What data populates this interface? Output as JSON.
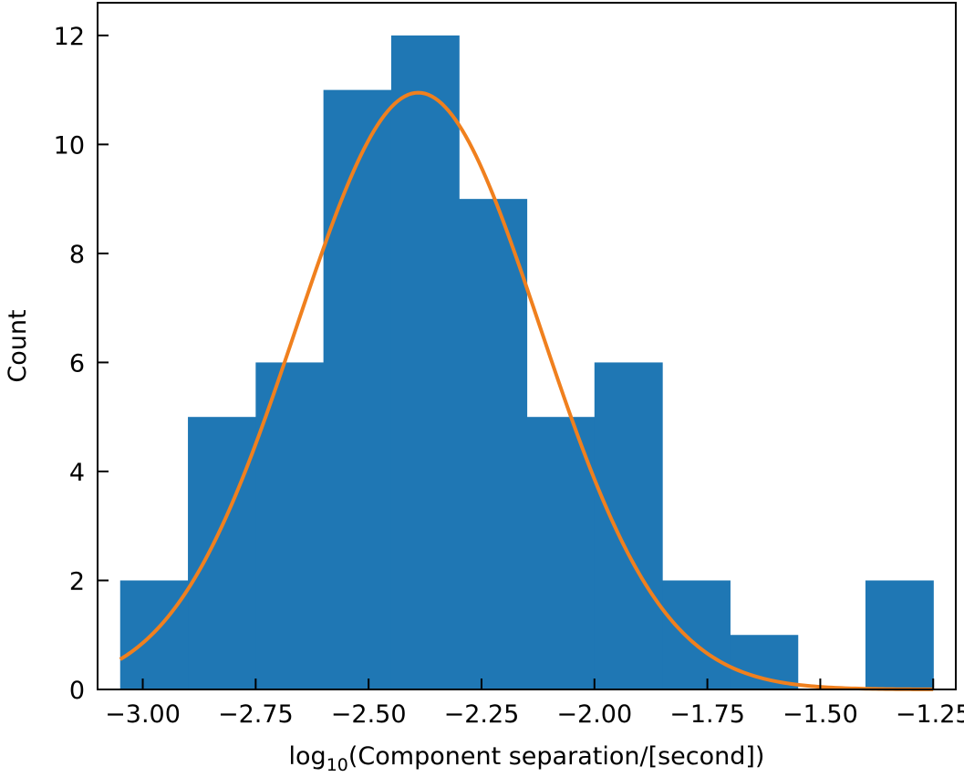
{
  "chart_data": {
    "type": "bar",
    "subtype": "histogram",
    "title": "",
    "xlabel": {
      "prefix": "log",
      "subscript": "10",
      "suffix": "(Component separation/[second])"
    },
    "ylabel": "Count",
    "xlim": [
      -3.1,
      -1.2
    ],
    "ylim": [
      0,
      12.6
    ],
    "xticks": [
      -3.0,
      -2.75,
      -2.5,
      -2.25,
      -2.0,
      -1.75,
      -1.5,
      -1.25
    ],
    "xtick_labels": [
      "−3.00",
      "−2.75",
      "−2.50",
      "−2.25",
      "−2.00",
      "−1.75",
      "−1.50",
      "−1.25"
    ],
    "yticks": [
      0,
      2,
      4,
      6,
      8,
      10,
      12
    ],
    "ytick_labels": [
      "0",
      "2",
      "4",
      "6",
      "8",
      "10",
      "12"
    ],
    "grid": false,
    "bins": [
      {
        "x0": -3.05,
        "x1": -2.9,
        "count": 2
      },
      {
        "x0": -2.9,
        "x1": -2.75,
        "count": 5
      },
      {
        "x0": -2.75,
        "x1": -2.6,
        "count": 6
      },
      {
        "x0": -2.6,
        "x1": -2.45,
        "count": 11
      },
      {
        "x0": -2.45,
        "x1": -2.3,
        "count": 12
      },
      {
        "x0": -2.3,
        "x1": -2.15,
        "count": 9
      },
      {
        "x0": -2.15,
        "x1": -2.0,
        "count": 5
      },
      {
        "x0": -2.0,
        "x1": -1.85,
        "count": 6
      },
      {
        "x0": -1.85,
        "x1": -1.7,
        "count": 2
      },
      {
        "x0": -1.7,
        "x1": -1.55,
        "count": 1
      },
      {
        "x0": -1.55,
        "x1": -1.4,
        "count": 0
      },
      {
        "x0": -1.4,
        "x1": -1.25,
        "count": 2
      }
    ],
    "fit": {
      "type": "gaussian",
      "amplitude": 10.95,
      "mean": -2.39,
      "sigma": 0.27,
      "x_range": [
        -3.05,
        -1.25
      ]
    },
    "colors": {
      "bars": "#1f77b4",
      "fit": "#f0801e"
    }
  }
}
